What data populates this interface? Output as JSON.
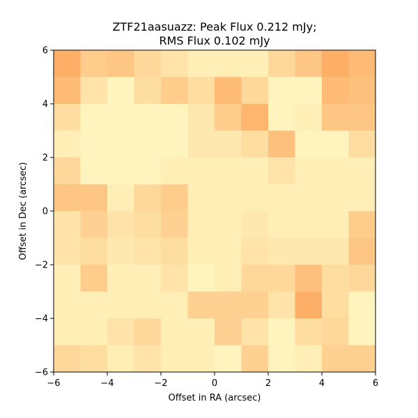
{
  "chart_data": {
    "type": "heatmap",
    "title_line1": "ZTF21aasuazz: Peak Flux 0.212 mJy;",
    "title_line2": "RMS Flux 0.102 mJy",
    "xlabel": "Offset in RA (arcsec)",
    "ylabel": "Offset in Dec (arcsec)",
    "xlim": [
      -6,
      6
    ],
    "ylim": [
      -6,
      6
    ],
    "xticks": [
      -6,
      -4,
      -2,
      0,
      2,
      4,
      6
    ],
    "yticks": [
      -6,
      -4,
      -2,
      0,
      2,
      4,
      6
    ],
    "xtick_labels": [
      "−6",
      "−4",
      "−2",
      "0",
      "2",
      "4",
      "6"
    ],
    "ytick_labels": [
      "−6",
      "−4",
      "−2",
      "0",
      "2",
      "4",
      "6"
    ],
    "grid": false,
    "colormap": "YlOrRd",
    "color_min": "#ffffcc",
    "color_max": "#fd8d3c",
    "pixel_size_arcsec": 1.0,
    "values_rows_top_to_bottom": [
      [
        0.7,
        0.45,
        0.5,
        0.35,
        0.25,
        0.15,
        0.15,
        0.15,
        0.35,
        0.5,
        0.7,
        0.6
      ],
      [
        0.6,
        0.25,
        0.1,
        0.3,
        0.45,
        0.3,
        0.6,
        0.35,
        0.1,
        0.1,
        0.6,
        0.55
      ],
      [
        0.3,
        0.1,
        0.1,
        0.1,
        0.1,
        0.2,
        0.45,
        0.65,
        0.1,
        0.15,
        0.5,
        0.5
      ],
      [
        0.15,
        0.1,
        0.1,
        0.1,
        0.1,
        0.2,
        0.2,
        0.3,
        0.55,
        0.1,
        0.1,
        0.3
      ],
      [
        0.35,
        0.1,
        0.1,
        0.1,
        0.15,
        0.15,
        0.15,
        0.15,
        0.25,
        0.15,
        0.15,
        0.15
      ],
      [
        0.5,
        0.5,
        0.15,
        0.35,
        0.45,
        0.15,
        0.15,
        0.15,
        0.15,
        0.15,
        0.15,
        0.15
      ],
      [
        0.25,
        0.4,
        0.25,
        0.3,
        0.4,
        0.15,
        0.15,
        0.2,
        0.15,
        0.15,
        0.15,
        0.45
      ],
      [
        0.25,
        0.3,
        0.2,
        0.25,
        0.3,
        0.15,
        0.15,
        0.25,
        0.2,
        0.2,
        0.2,
        0.5
      ],
      [
        0.15,
        0.45,
        0.15,
        0.15,
        0.25,
        0.1,
        0.15,
        0.35,
        0.35,
        0.55,
        0.3,
        0.35
      ],
      [
        0.15,
        0.15,
        0.15,
        0.15,
        0.15,
        0.4,
        0.4,
        0.4,
        0.25,
        0.7,
        0.3,
        0.1
      ],
      [
        0.15,
        0.15,
        0.25,
        0.35,
        0.15,
        0.15,
        0.4,
        0.25,
        0.1,
        0.3,
        0.35,
        0.1
      ],
      [
        0.35,
        0.3,
        0.15,
        0.25,
        0.15,
        0.15,
        0.1,
        0.4,
        0.1,
        0.15,
        0.4,
        0.4
      ]
    ]
  }
}
